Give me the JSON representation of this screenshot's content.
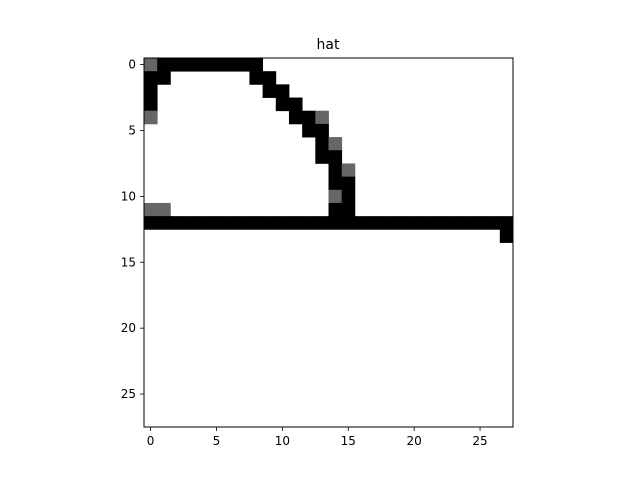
{
  "chart_data": {
    "type": "heatmap",
    "title": "hat",
    "xlabel": "",
    "ylabel": "",
    "grid": false,
    "colormap": "gray_r",
    "xlim": [
      -0.5,
      27.5
    ],
    "ylim": [
      27.5,
      -0.5
    ],
    "xticks": [
      0,
      5,
      10,
      15,
      20,
      25
    ],
    "yticks": [
      0,
      5,
      10,
      15,
      20,
      25
    ],
    "width": 28,
    "height": 28,
    "pixels": [
      {
        "row": 0,
        "col": 0,
        "v": 0.6
      },
      {
        "row": 0,
        "col": 1,
        "v": 1
      },
      {
        "row": 0,
        "col": 2,
        "v": 1
      },
      {
        "row": 0,
        "col": 3,
        "v": 1
      },
      {
        "row": 0,
        "col": 4,
        "v": 1
      },
      {
        "row": 0,
        "col": 5,
        "v": 1
      },
      {
        "row": 0,
        "col": 6,
        "v": 1
      },
      {
        "row": 0,
        "col": 7,
        "v": 1
      },
      {
        "row": 0,
        "col": 8,
        "v": 1
      },
      {
        "row": 1,
        "col": 0,
        "v": 1
      },
      {
        "row": 1,
        "col": 1,
        "v": 1
      },
      {
        "row": 1,
        "col": 8,
        "v": 1
      },
      {
        "row": 1,
        "col": 9,
        "v": 1
      },
      {
        "row": 2,
        "col": 0,
        "v": 1
      },
      {
        "row": 2,
        "col": 9,
        "v": 1
      },
      {
        "row": 2,
        "col": 10,
        "v": 1
      },
      {
        "row": 3,
        "col": 0,
        "v": 1
      },
      {
        "row": 3,
        "col": 10,
        "v": 1
      },
      {
        "row": 3,
        "col": 11,
        "v": 1
      },
      {
        "row": 4,
        "col": 0,
        "v": 0.6
      },
      {
        "row": 4,
        "col": 11,
        "v": 1
      },
      {
        "row": 4,
        "col": 12,
        "v": 1
      },
      {
        "row": 4,
        "col": 13,
        "v": 0.6
      },
      {
        "row": 5,
        "col": 12,
        "v": 1
      },
      {
        "row": 5,
        "col": 13,
        "v": 1
      },
      {
        "row": 6,
        "col": 13,
        "v": 1
      },
      {
        "row": 6,
        "col": 14,
        "v": 0.6
      },
      {
        "row": 7,
        "col": 13,
        "v": 1
      },
      {
        "row": 7,
        "col": 14,
        "v": 1
      },
      {
        "row": 8,
        "col": 14,
        "v": 1
      },
      {
        "row": 8,
        "col": 15,
        "v": 0.6
      },
      {
        "row": 9,
        "col": 14,
        "v": 1
      },
      {
        "row": 9,
        "col": 15,
        "v": 1
      },
      {
        "row": 10,
        "col": 14,
        "v": 0.6
      },
      {
        "row": 10,
        "col": 15,
        "v": 1
      },
      {
        "row": 11,
        "col": 0,
        "v": 0.6
      },
      {
        "row": 11,
        "col": 1,
        "v": 0.6
      },
      {
        "row": 11,
        "col": 14,
        "v": 1
      },
      {
        "row": 11,
        "col": 15,
        "v": 1
      },
      {
        "row": 12,
        "col": 0,
        "v": 1
      },
      {
        "row": 12,
        "col": 1,
        "v": 1
      },
      {
        "row": 12,
        "col": 2,
        "v": 1
      },
      {
        "row": 12,
        "col": 3,
        "v": 1
      },
      {
        "row": 12,
        "col": 4,
        "v": 1
      },
      {
        "row": 12,
        "col": 5,
        "v": 1
      },
      {
        "row": 12,
        "col": 6,
        "v": 1
      },
      {
        "row": 12,
        "col": 7,
        "v": 1
      },
      {
        "row": 12,
        "col": 8,
        "v": 1
      },
      {
        "row": 12,
        "col": 9,
        "v": 1
      },
      {
        "row": 12,
        "col": 10,
        "v": 1
      },
      {
        "row": 12,
        "col": 11,
        "v": 1
      },
      {
        "row": 12,
        "col": 12,
        "v": 1
      },
      {
        "row": 12,
        "col": 13,
        "v": 1
      },
      {
        "row": 12,
        "col": 14,
        "v": 1
      },
      {
        "row": 12,
        "col": 15,
        "v": 1
      },
      {
        "row": 12,
        "col": 16,
        "v": 1
      },
      {
        "row": 12,
        "col": 17,
        "v": 1
      },
      {
        "row": 12,
        "col": 18,
        "v": 1
      },
      {
        "row": 12,
        "col": 19,
        "v": 1
      },
      {
        "row": 12,
        "col": 20,
        "v": 1
      },
      {
        "row": 12,
        "col": 21,
        "v": 1
      },
      {
        "row": 12,
        "col": 22,
        "v": 1
      },
      {
        "row": 12,
        "col": 23,
        "v": 1
      },
      {
        "row": 12,
        "col": 24,
        "v": 1
      },
      {
        "row": 12,
        "col": 25,
        "v": 1
      },
      {
        "row": 12,
        "col": 26,
        "v": 1
      },
      {
        "row": 12,
        "col": 27,
        "v": 1
      },
      {
        "row": 13,
        "col": 27,
        "v": 1
      }
    ]
  }
}
